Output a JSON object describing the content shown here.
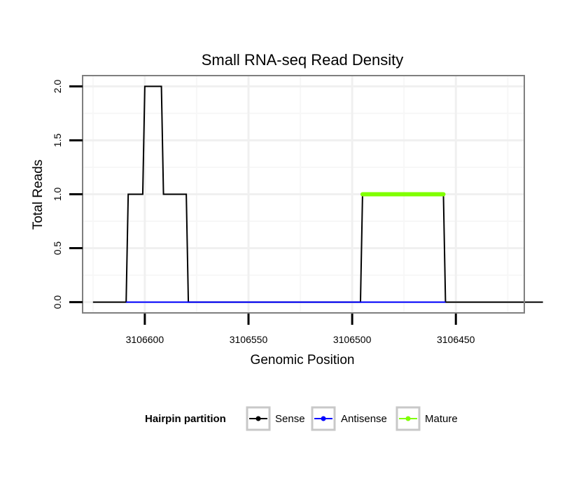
{
  "chart_data": {
    "type": "line",
    "title": "Small RNA-seq Read Density",
    "xlabel": "Genomic Position",
    "ylabel": "Total Reads",
    "x_reversed": true,
    "xlim": [
      3106630,
      3106417
    ],
    "ylim": [
      -0.1,
      2.1
    ],
    "x_ticks": [
      3106600,
      3106550,
      3106500,
      3106450
    ],
    "x_tick_labels": [
      "3106600",
      "3106550",
      "3106500",
      "3106450"
    ],
    "y_ticks": [
      0,
      0.5,
      1,
      1.5,
      2
    ],
    "y_tick_labels": [
      "0.0",
      "0.5",
      "1.0",
      "1.5",
      "2.0"
    ],
    "grid": true,
    "series": [
      {
        "name": "Sense",
        "color": "#000000",
        "width": 2,
        "points": [
          [
            3106625,
            0
          ],
          [
            3106609,
            0
          ],
          [
            3106608,
            1
          ],
          [
            3106601,
            1
          ],
          [
            3106600,
            2
          ],
          [
            3106592,
            2
          ],
          [
            3106591,
            1
          ],
          [
            3106580,
            1
          ],
          [
            3106579,
            0
          ],
          [
            3106496,
            0
          ],
          [
            3106495,
            1
          ],
          [
            3106456,
            1
          ],
          [
            3106455,
            0
          ],
          [
            3106408,
            0
          ]
        ]
      },
      {
        "name": "Antisense",
        "color": "#0000ff",
        "width": 2,
        "points": [
          [
            3106609,
            0
          ],
          [
            3106579,
            0
          ],
          [
            3106496,
            0
          ],
          [
            3106455,
            0
          ]
        ]
      },
      {
        "name": "Mature",
        "color": "#80ff00",
        "width": 6,
        "points": [
          [
            3106495,
            1
          ],
          [
            3106456,
            1
          ]
        ]
      }
    ],
    "legend": {
      "title": "Hairpin partition",
      "position": "bottom",
      "entries": [
        {
          "label": "Sense",
          "color": "#000000"
        },
        {
          "label": "Antisense",
          "color": "#0000ff"
        },
        {
          "label": "Mature",
          "color": "#80ff00"
        }
      ]
    }
  }
}
